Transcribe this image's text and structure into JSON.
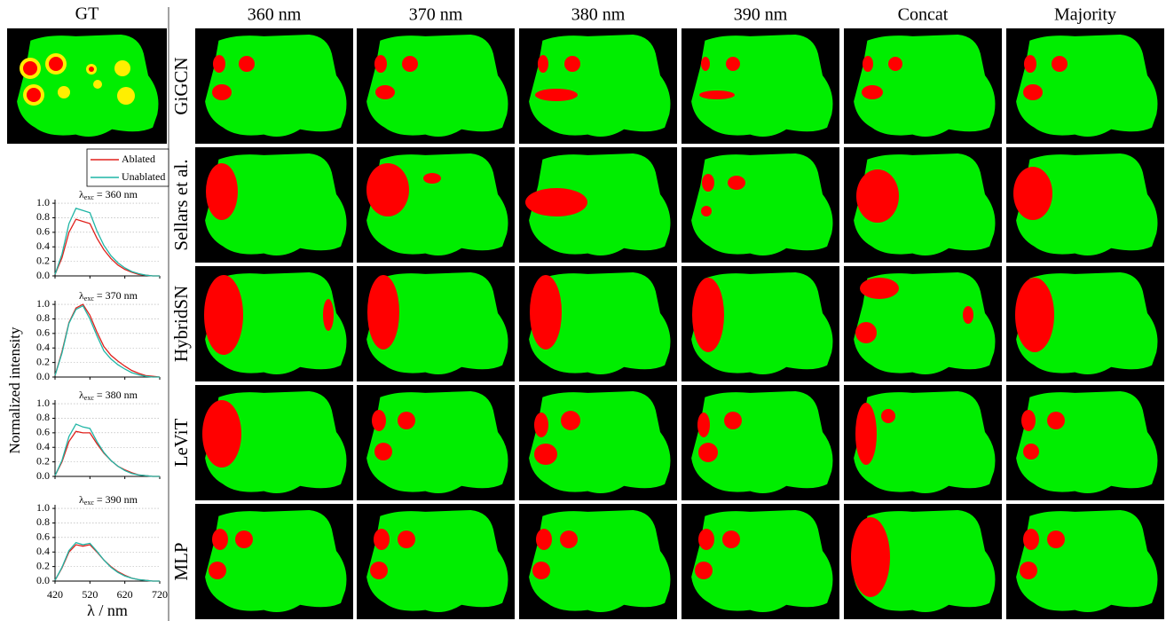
{
  "figure": {
    "gt_label": "GT",
    "columns": [
      "360 nm",
      "370 nm",
      "380 nm",
      "390 nm",
      "Concat",
      "Majority"
    ],
    "rows": [
      "GiGCN",
      "Sellars et al.",
      "HybridSN",
      "LeViT",
      "MLP"
    ],
    "spectra_ylabel": "Normalized intensity",
    "spectra_xlabel": "λ / nm"
  },
  "chart_data": [
    {
      "type": "line",
      "title_symbol": "λ",
      "title_subscript": "exc",
      "title_value": "= 360 nm",
      "x": [
        420,
        440,
        460,
        480,
        500,
        520,
        540,
        560,
        580,
        600,
        620,
        640,
        660,
        680,
        700,
        720
      ],
      "xlim": [
        420,
        720
      ],
      "xticks": [
        420,
        520,
        620,
        720
      ],
      "ylim": [
        0,
        1.05
      ],
      "yticks": [
        {
          "value": 0,
          "label": "0.0"
        },
        0.2,
        0.4,
        0.6,
        0.8,
        {
          "value": 1,
          "label": "1.0"
        }
      ],
      "grid": true,
      "series": [
        {
          "name": "Ablated",
          "color": "#e0201b",
          "values": [
            0.02,
            0.25,
            0.6,
            0.78,
            0.75,
            0.72,
            0.52,
            0.36,
            0.24,
            0.15,
            0.09,
            0.05,
            0.02,
            0.01,
            0,
            0
          ]
        },
        {
          "name": "Unablated",
          "color": "#1fb5a5",
          "values": [
            0.02,
            0.3,
            0.72,
            0.93,
            0.9,
            0.87,
            0.62,
            0.42,
            0.28,
            0.18,
            0.11,
            0.06,
            0.03,
            0.01,
            0,
            0
          ]
        }
      ]
    },
    {
      "type": "line",
      "title_symbol": "λ",
      "title_subscript": "exc",
      "title_value": "= 370 nm",
      "x": [
        420,
        440,
        460,
        480,
        500,
        520,
        540,
        560,
        580,
        600,
        620,
        640,
        660,
        680,
        700,
        720
      ],
      "xlim": [
        420,
        720
      ],
      "xticks": [
        420,
        520,
        620,
        720
      ],
      "ylim": [
        0,
        1.05
      ],
      "yticks": [
        {
          "value": 0,
          "label": "0.0"
        },
        0.2,
        0.4,
        0.6,
        0.8,
        {
          "value": 1,
          "label": "1.0"
        }
      ],
      "grid": true,
      "series": [
        {
          "color": "#e0201b",
          "values": [
            0.02,
            0.35,
            0.75,
            0.95,
            1.0,
            0.85,
            0.62,
            0.42,
            0.3,
            0.22,
            0.15,
            0.09,
            0.05,
            0.02,
            0.01,
            0
          ]
        },
        {
          "color": "#1fb5a5",
          "values": [
            0.02,
            0.33,
            0.74,
            0.93,
            0.98,
            0.8,
            0.57,
            0.36,
            0.25,
            0.17,
            0.11,
            0.06,
            0.03,
            0.01,
            0,
            0
          ]
        }
      ]
    },
    {
      "type": "line",
      "title_symbol": "λ",
      "title_subscript": "exc",
      "title_value": "= 380 nm",
      "x": [
        420,
        440,
        460,
        480,
        500,
        520,
        540,
        560,
        580,
        600,
        620,
        640,
        660,
        680,
        700,
        720
      ],
      "xlim": [
        420,
        720
      ],
      "xticks": [
        420,
        520,
        620,
        720
      ],
      "ylim": [
        0,
        1.05
      ],
      "yticks": [
        {
          "value": 0,
          "label": "0.0"
        },
        0.2,
        0.4,
        0.6,
        0.8,
        {
          "value": 1,
          "label": "1.0"
        }
      ],
      "grid": true,
      "series": [
        {
          "color": "#e0201b",
          "values": [
            0.01,
            0.2,
            0.48,
            0.62,
            0.6,
            0.6,
            0.45,
            0.32,
            0.22,
            0.14,
            0.09,
            0.05,
            0.02,
            0.01,
            0,
            0
          ]
        },
        {
          "color": "#1fb5a5",
          "values": [
            0.01,
            0.22,
            0.55,
            0.72,
            0.68,
            0.66,
            0.48,
            0.33,
            0.22,
            0.14,
            0.08,
            0.04,
            0.02,
            0.01,
            0,
            0
          ]
        }
      ]
    },
    {
      "type": "line",
      "title_symbol": "λ",
      "title_subscript": "exc",
      "title_value": "= 390 nm",
      "x": [
        420,
        440,
        460,
        480,
        500,
        520,
        540,
        560,
        580,
        600,
        620,
        640,
        660,
        680,
        700,
        720
      ],
      "xlim": [
        420,
        720
      ],
      "xticks": [
        420,
        520,
        620,
        720
      ],
      "ylim": [
        0,
        1.05
      ],
      "yticks": [
        {
          "value": 0,
          "label": "0.0"
        },
        0.2,
        0.4,
        0.6,
        0.8,
        {
          "value": 1,
          "label": "1.0"
        }
      ],
      "grid": true,
      "series": [
        {
          "color": "#e0201b",
          "values": [
            0.01,
            0.18,
            0.4,
            0.5,
            0.48,
            0.5,
            0.4,
            0.29,
            0.2,
            0.13,
            0.08,
            0.04,
            0.02,
            0.01,
            0,
            0
          ]
        },
        {
          "color": "#1fb5a5",
          "values": [
            0.01,
            0.19,
            0.42,
            0.53,
            0.5,
            0.52,
            0.41,
            0.29,
            0.19,
            0.12,
            0.07,
            0.04,
            0.02,
            0.01,
            0,
            0
          ]
        }
      ]
    }
  ]
}
